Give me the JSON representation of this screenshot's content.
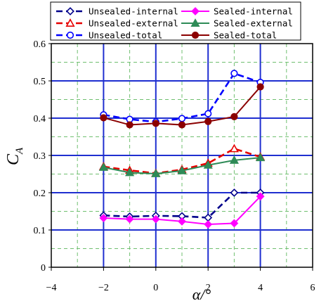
{
  "chart_data": {
    "type": "line",
    "title": "",
    "xlabel": "α/°",
    "ylabel": "C",
    "ylabel_subscript": "A",
    "xlim": [
      -4,
      6
    ],
    "ylim": [
      0,
      0.6
    ],
    "xticks": [
      -4,
      -2,
      0,
      2,
      4,
      6
    ],
    "yticks": [
      0,
      0.1,
      0.2,
      0.3,
      0.4,
      0.5,
      0.6
    ],
    "x_tick_labels": [
      "−4",
      "−2",
      "0",
      "2",
      "4",
      "6"
    ],
    "y_tick_labels": [
      "0",
      "0.1",
      "0.2",
      "0.3",
      "0.4",
      "0.5",
      "0.6"
    ],
    "grid": true,
    "legend_position": "top",
    "series": [
      {
        "name": "Unsealed-internal",
        "color": "#00008b",
        "marker": "diamond-open",
        "line": "dashed",
        "x": [
          -2,
          -1,
          0,
          1,
          2,
          3,
          4
        ],
        "y": [
          0.139,
          0.136,
          0.138,
          0.137,
          0.133,
          0.2,
          0.2
        ]
      },
      {
        "name": "Unsealed-external",
        "color": "#e60000",
        "marker": "triangle-open",
        "line": "dashed",
        "x": [
          -2,
          -1,
          0,
          1,
          2,
          3,
          4
        ],
        "y": [
          0.27,
          0.26,
          0.252,
          0.262,
          0.279,
          0.318,
          0.296
        ]
      },
      {
        "name": "Unsealed-total",
        "color": "#0000ff",
        "marker": "circle-open",
        "line": "dashed",
        "x": [
          -2,
          -1,
          0,
          1,
          2,
          3,
          4
        ],
        "y": [
          0.409,
          0.397,
          0.39,
          0.399,
          0.412,
          0.52,
          0.496
        ]
      },
      {
        "name": "Sealed-internal",
        "color": "#ff00ff",
        "marker": "diamond-filled",
        "line": "solid",
        "x": [
          -2,
          -1,
          0,
          1,
          2,
          3,
          4
        ],
        "y": [
          0.132,
          0.129,
          0.129,
          0.123,
          0.115,
          0.118,
          0.19
        ]
      },
      {
        "name": "Sealed-external",
        "color": "#2e8b57",
        "marker": "triangle-filled",
        "line": "solid",
        "x": [
          -2,
          -1,
          0,
          1,
          2,
          3,
          4
        ],
        "y": [
          0.268,
          0.254,
          0.251,
          0.259,
          0.274,
          0.287,
          0.294
        ]
      },
      {
        "name": "Sealed-total",
        "color": "#8b0000",
        "marker": "circle-filled",
        "line": "solid",
        "x": [
          -2,
          -1,
          0,
          1,
          2,
          3,
          4
        ],
        "y": [
          0.401,
          0.382,
          0.386,
          0.382,
          0.391,
          0.404,
          0.484
        ]
      }
    ]
  }
}
